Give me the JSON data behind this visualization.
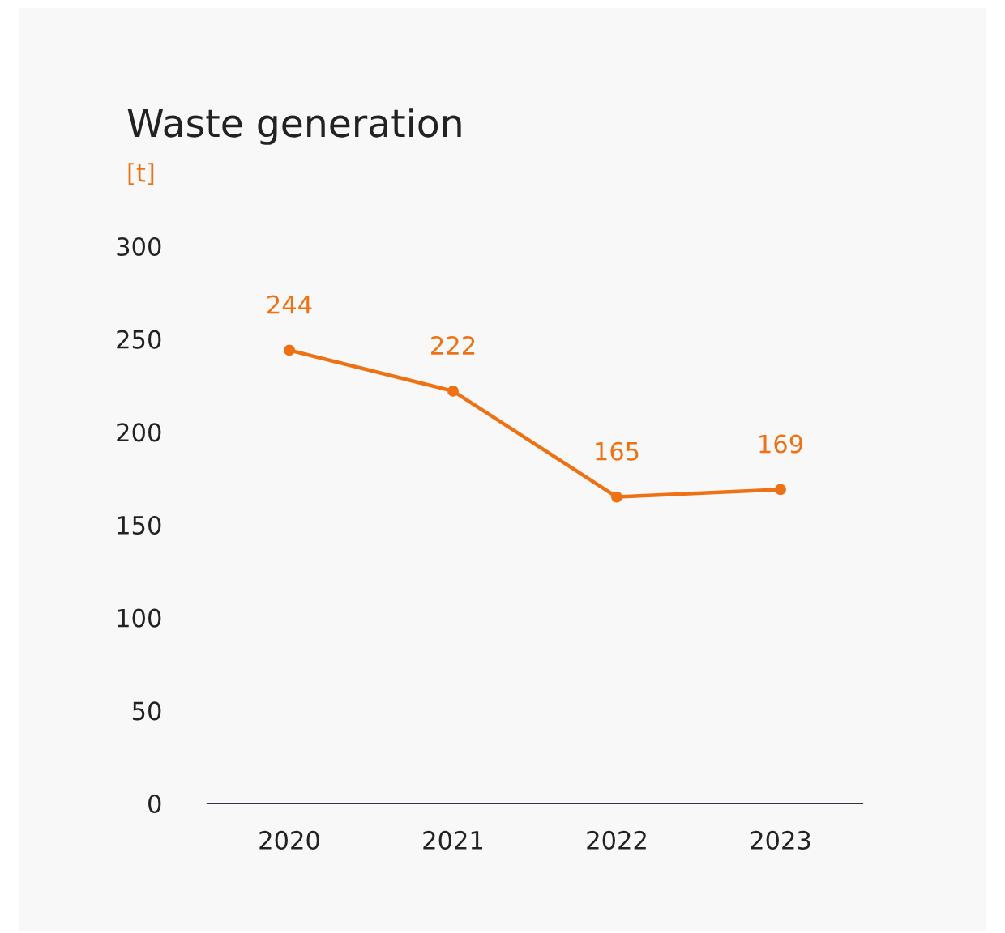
{
  "chart_data": {
    "type": "line",
    "title": "Waste generation",
    "ylabel": "[t]",
    "categories": [
      "2020",
      "2021",
      "2022",
      "2023"
    ],
    "series": [
      {
        "color": "#ee7113",
        "values": [
          244,
          222,
          165,
          169
        ]
      }
    ],
    "ylim": [
      0,
      300
    ],
    "yticks": [
      0,
      50,
      100,
      150,
      200,
      250,
      300
    ],
    "data_labels": true,
    "marker": "circle",
    "line_style": "solid",
    "grid": false,
    "legend": false
  }
}
